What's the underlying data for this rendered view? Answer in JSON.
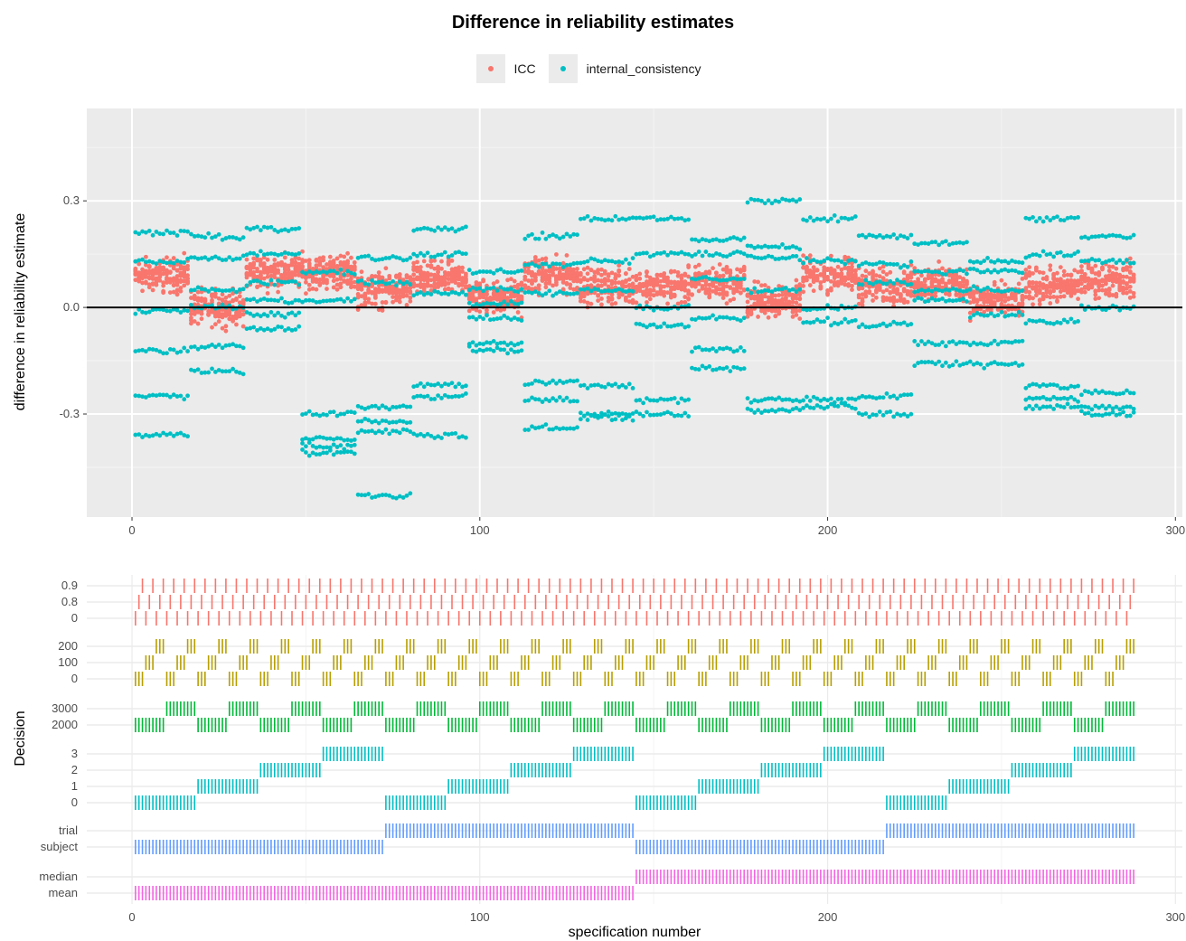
{
  "chart_data": [
    {
      "type": "scatter",
      "title": "Difference in reliability estimates",
      "xlabel": "",
      "ylabel": "difference in reliability estimate",
      "xlim": [
        -13,
        302
      ],
      "ylim": [
        -0.59,
        0.56
      ],
      "x_ticks": [
        0,
        100,
        200,
        300
      ],
      "y_ticks": [
        -0.3,
        0.0,
        0.3
      ],
      "y_tick_labels": [
        "-0.3",
        "0.0",
        "0.3"
      ],
      "hline": 0,
      "legend": "top",
      "background": "panel-grey",
      "grid": true,
      "n_specifications": 288,
      "series": [
        {
          "name": "ICC",
          "color": "#F8766D",
          "note_block_means": [
            0.09,
            0.0,
            0.1,
            0.1,
            0.05,
            0.08,
            0.03,
            0.09,
            0.06,
            0.06,
            0.07,
            0.02,
            0.09,
            0.06,
            0.07,
            0.02,
            0.06,
            0.08
          ],
          "points_per_spec": 10
        },
        {
          "name": "internal_consistency",
          "color": "#00BFC4",
          "block_levels": [
            [
              0.13,
              -0.01,
              -0.12,
              -0.25,
              0.21,
              -0.36
            ],
            [
              0.14,
              0.0,
              -0.11,
              0.05,
              0.2,
              -0.18
            ],
            [
              0.15,
              0.07,
              -0.02,
              -0.06,
              0.22,
              0.02
            ],
            [
              -0.3,
              -0.37,
              -0.39,
              -0.41,
              0.1,
              0.02
            ],
            [
              0.14,
              0.07,
              -0.28,
              -0.32,
              -0.35,
              -0.53
            ],
            [
              0.15,
              0.04,
              -0.22,
              -0.25,
              -0.36,
              0.22
            ],
            [
              0.1,
              0.05,
              -0.1,
              -0.12,
              -0.03,
              0.01
            ],
            [
              0.12,
              0.04,
              -0.21,
              -0.26,
              -0.34,
              0.2
            ],
            [
              0.13,
              0.05,
              -0.22,
              -0.3,
              -0.31,
              0.25
            ],
            [
              0.15,
              0.0,
              -0.05,
              -0.26,
              -0.3,
              0.25
            ],
            [
              0.15,
              0.08,
              -0.12,
              -0.17,
              -0.03,
              0.19
            ],
            [
              0.14,
              0.05,
              -0.26,
              -0.29,
              0.3,
              0.17
            ],
            [
              0.13,
              0.0,
              -0.26,
              -0.28,
              -0.04,
              0.25
            ],
            [
              0.12,
              0.07,
              -0.25,
              -0.3,
              -0.05,
              0.2
            ],
            [
              0.1,
              0.02,
              -0.1,
              -0.16,
              0.18,
              0.05
            ],
            [
              0.13,
              -0.02,
              -0.1,
              -0.16,
              0.1,
              0.05
            ],
            [
              0.15,
              -0.04,
              -0.22,
              -0.26,
              -0.28,
              0.25
            ],
            [
              0.13,
              0.0,
              -0.24,
              -0.28,
              -0.3,
              0.2
            ]
          ],
          "note": "levels in difference units; each of 18 blocks spans 16 specifications"
        }
      ]
    },
    {
      "type": "table",
      "xlabel": "specification number",
      "ylabel": "Decision",
      "xlim": [
        -13,
        302
      ],
      "x_ticks": [
        0,
        100,
        200,
        300
      ],
      "grid": true,
      "facets": [
        {
          "levels": [
            "0",
            "0.8",
            "0.9"
          ],
          "color": "#F8766D",
          "cycle": 1,
          "block": 96
        },
        {
          "levels": [
            "0",
            "100",
            "200"
          ],
          "color": "#B79F00",
          "cycle": 3,
          "block": 288
        },
        {
          "levels": [
            "2000",
            "3000"
          ],
          "color": "#00BA38",
          "cycle": 9,
          "block": 18
        },
        {
          "levels": [
            "0",
            "1",
            "2",
            "3"
          ],
          "color": "#00BFC4",
          "cycle": 18,
          "block": 72
        },
        {
          "levels": [
            "subject",
            "trial"
          ],
          "color": "#619CFF",
          "cycle": 72,
          "block": 144
        },
        {
          "levels": [
            "mean",
            "median"
          ],
          "color": "#F564E3",
          "cycle": 144,
          "block": 288
        }
      ]
    }
  ],
  "legend_items": [
    {
      "label": "ICC",
      "color": "#F8766D"
    },
    {
      "label": "internal_consistency",
      "color": "#00BFC4"
    }
  ]
}
